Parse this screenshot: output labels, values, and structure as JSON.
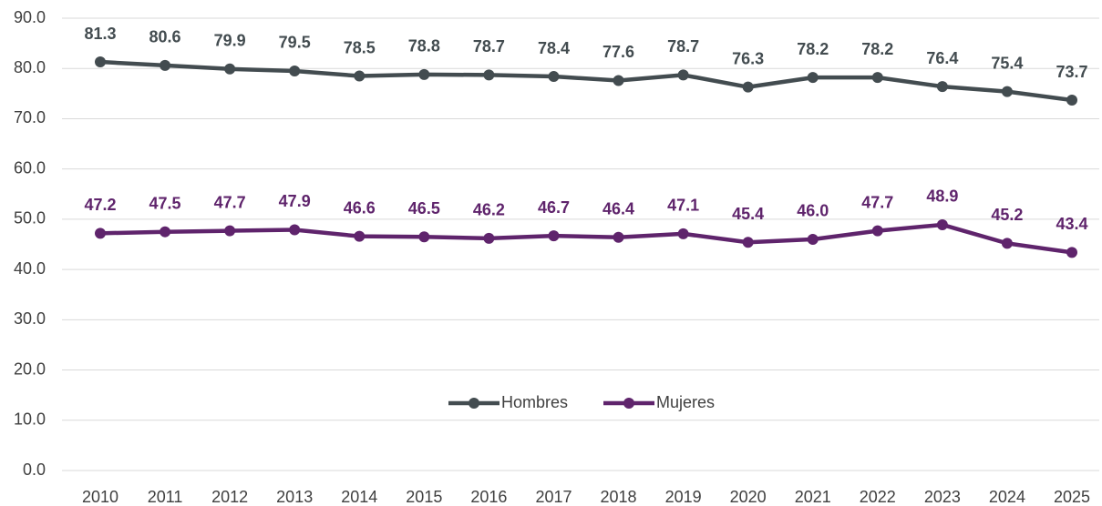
{
  "chart_data": {
    "type": "line",
    "categories": [
      "2010",
      "2011",
      "2012",
      "2013",
      "2014",
      "2015",
      "2016",
      "2017",
      "2018",
      "2019",
      "2020",
      "2021",
      "2022",
      "2023",
      "2024",
      "2025"
    ],
    "series": [
      {
        "name": "Hombres",
        "color": "#434c50",
        "values": [
          81.3,
          80.6,
          79.9,
          79.5,
          78.5,
          78.8,
          78.7,
          78.4,
          77.6,
          78.7,
          76.3,
          78.2,
          78.2,
          76.4,
          75.4,
          73.7
        ],
        "value_labels": [
          "81.3",
          "80.6",
          "79.9",
          "79.5",
          "78.5",
          "78.8",
          "78.7",
          "78.4",
          "77.6",
          "78.7",
          "76.3",
          "78.2",
          "78.2",
          "76.4",
          "75.4",
          "73.7"
        ]
      },
      {
        "name": "Mujeres",
        "color": "#5f246c",
        "values": [
          47.2,
          47.5,
          47.7,
          47.9,
          46.6,
          46.5,
          46.2,
          46.7,
          46.4,
          47.1,
          45.4,
          46.0,
          47.7,
          48.9,
          45.2,
          43.4
        ],
        "value_labels": [
          "47.2",
          "47.5",
          "47.7",
          "47.9",
          "46.6",
          "46.5",
          "46.2",
          "46.7",
          "46.4",
          "47.1",
          "45.4",
          "46.0",
          "47.7",
          "48.9",
          "45.2",
          "43.4"
        ]
      }
    ],
    "ylim": [
      0,
      90
    ],
    "yticks": [
      {
        "value": 0,
        "label": "0.0"
      },
      {
        "value": 10,
        "label": "10.0"
      },
      {
        "value": 20,
        "label": "20.0"
      },
      {
        "value": 30,
        "label": "30.0"
      },
      {
        "value": 40,
        "label": "40.0"
      },
      {
        "value": 50,
        "label": "50.0"
      },
      {
        "value": 60,
        "label": "60.0"
      },
      {
        "value": 70,
        "label": "70.0"
      },
      {
        "value": 80,
        "label": "80.0"
      },
      {
        "value": 90,
        "label": "90.0"
      }
    ],
    "grid": true,
    "legend": "lower center"
  }
}
